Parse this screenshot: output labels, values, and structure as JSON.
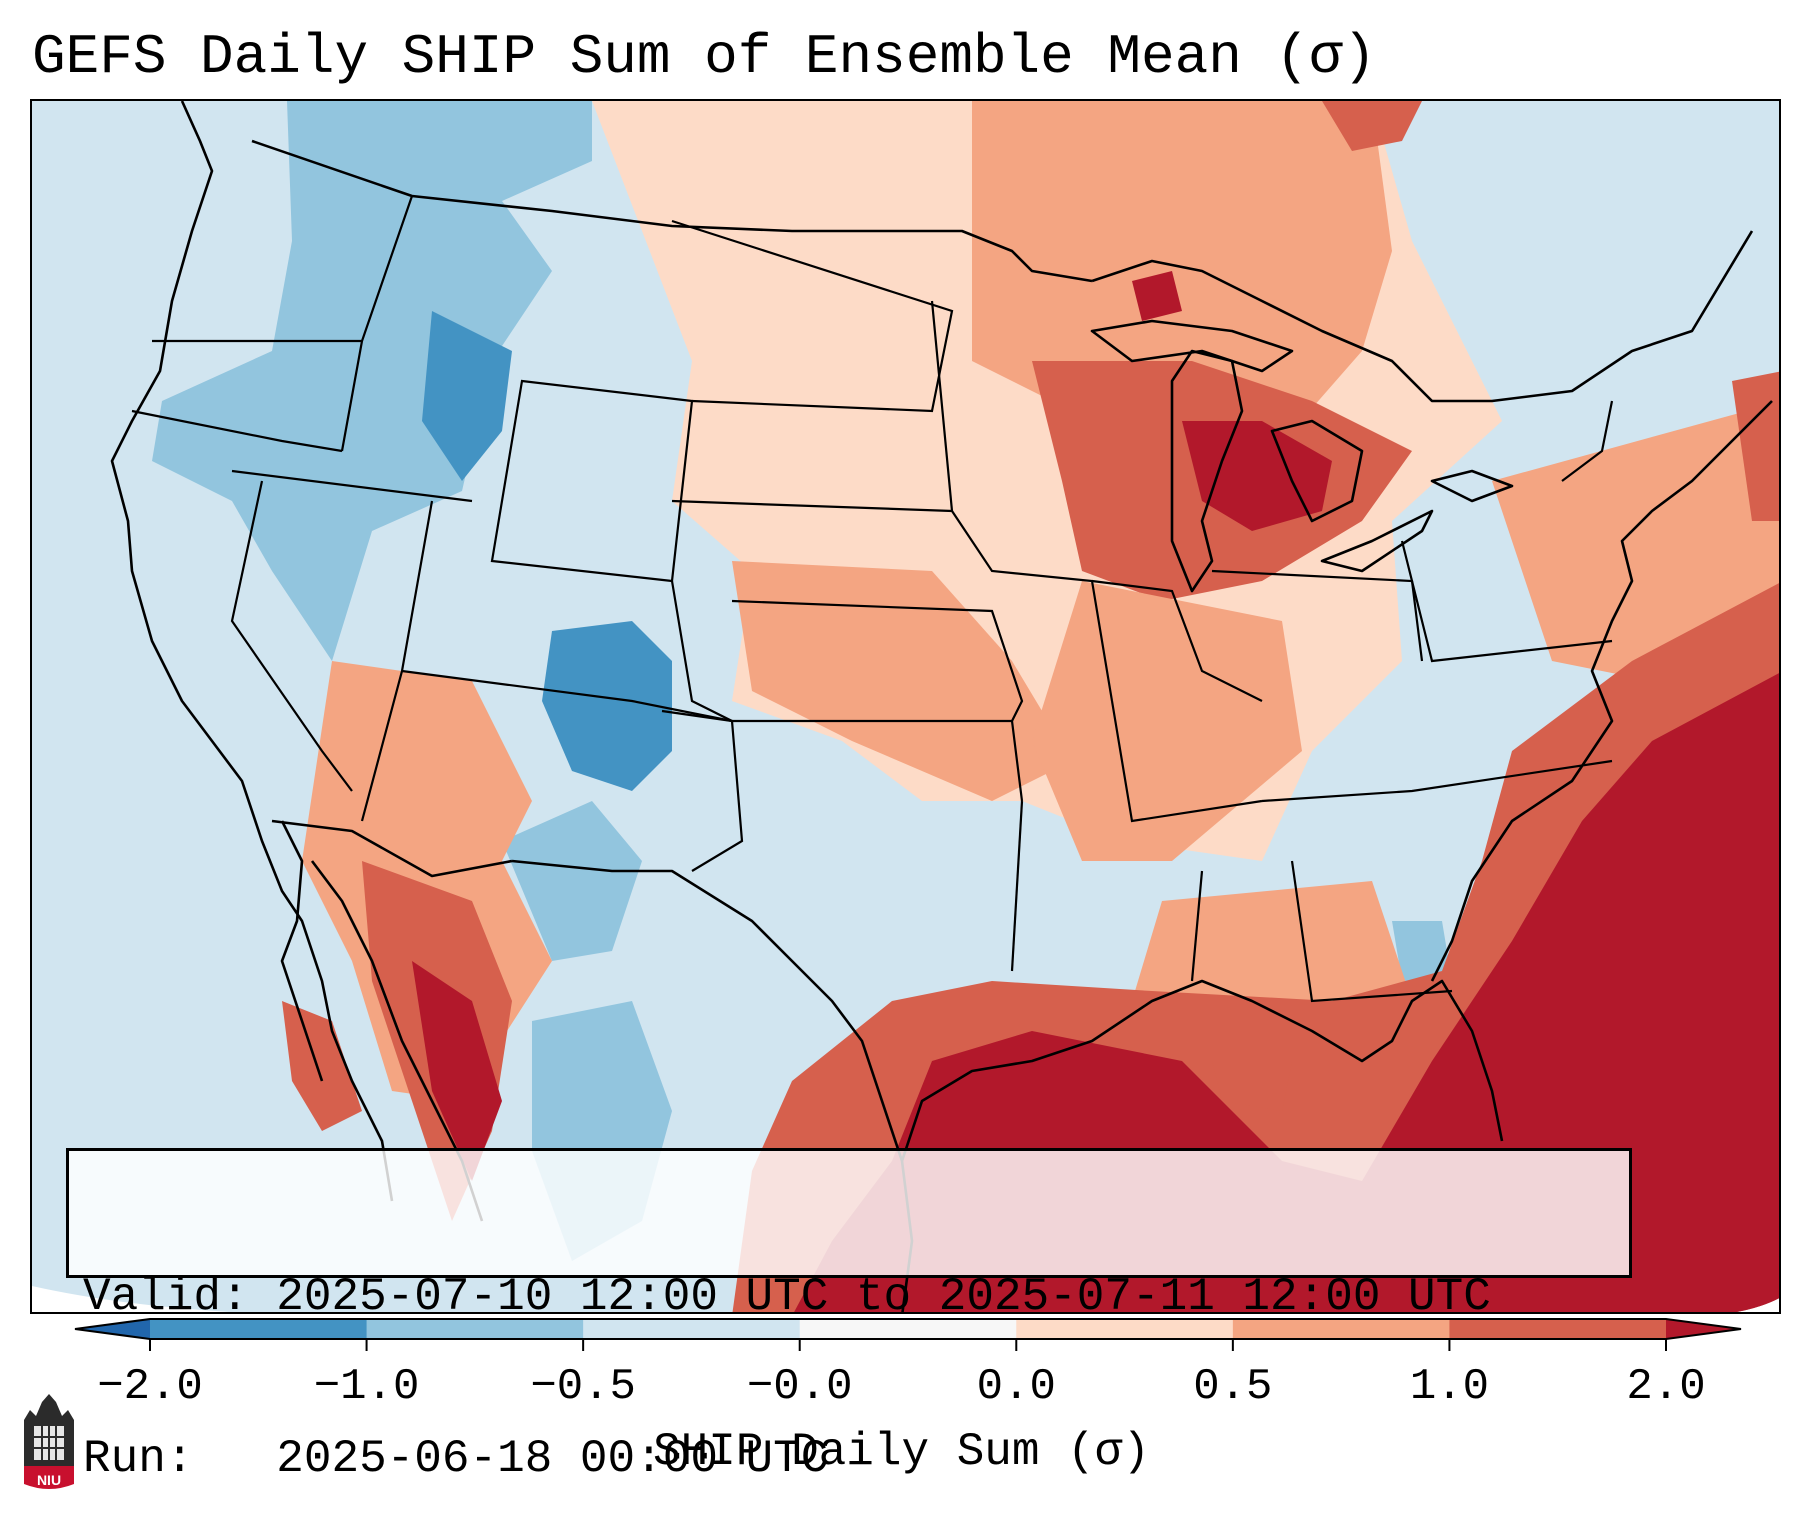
{
  "title": "GEFS Daily SHIP Sum of Ensemble Mean (σ)",
  "info_box": {
    "valid_label": "Valid:",
    "valid_value": "2025-07-10 12:00 UTC to 2025-07-11 12:00 UTC",
    "run_label": "Run:",
    "run_value": "2025-06-18 00:00 UTC"
  },
  "colorbar": {
    "label": "SHIP Daily Sum (σ)",
    "bins": [
      {
        "from": -2.0,
        "to": -1.0,
        "color": "#4393c3"
      },
      {
        "from": -1.0,
        "to": -0.5,
        "color": "#92c5de"
      },
      {
        "from": -0.5,
        "to": -0.0,
        "color": "#d1e5f0"
      },
      {
        "from": -0.0,
        "to": 0.0,
        "color": "#f7f7f7"
      },
      {
        "from": 0.0,
        "to": 0.5,
        "color": "#fddbc7"
      },
      {
        "from": 0.5,
        "to": 1.0,
        "color": "#f4a582"
      },
      {
        "from": 1.0,
        "to": 2.0,
        "color": "#d6604d"
      }
    ],
    "under_color": "#2166ac",
    "over_color": "#b2182b",
    "tick_labels": [
      "−2.0",
      "−1.0",
      "−0.5",
      "−0.0",
      "0.0",
      "0.5",
      "1.0",
      "2.0"
    ]
  },
  "map": {
    "region": "Contiguous United States",
    "palette": {
      "lowest": "#4393c3",
      "low": "#92c5de",
      "slightly_low": "#d1e5f0",
      "slightly_high": "#fddbc7",
      "high": "#f4a582",
      "higher": "#d6604d",
      "highest": "#b2182b",
      "outline": "#000000"
    }
  },
  "logo": {
    "text": "NIU",
    "color": "#c8102e"
  }
}
